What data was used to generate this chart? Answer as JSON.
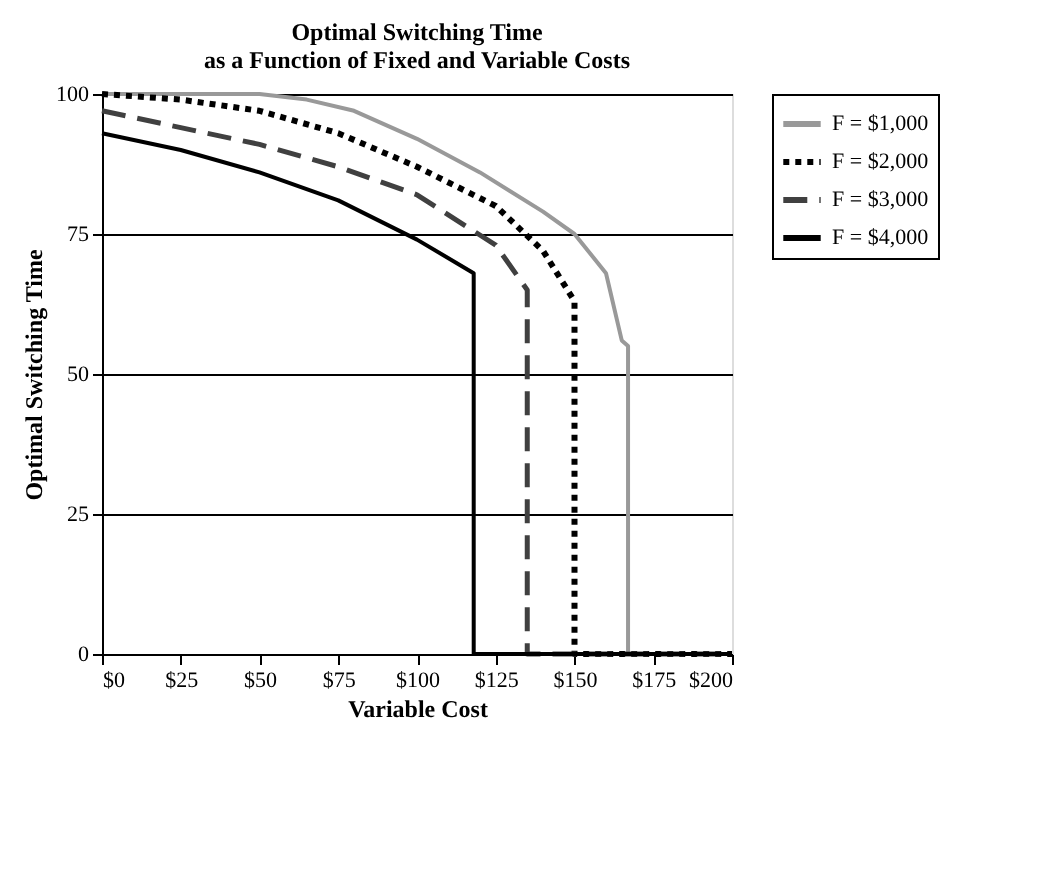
{
  "chart_data": {
    "type": "line",
    "title": "Optimal Switching Time\nas a Function of Fixed and Variable Costs",
    "xlabel": "Variable Cost",
    "ylabel": "Optimal Switching Time",
    "xlim": [
      0,
      200
    ],
    "xticks": [
      {
        "value": 0,
        "label": "$0"
      },
      {
        "value": 25,
        "label": "$25"
      },
      {
        "value": 50,
        "label": "$50"
      },
      {
        "value": 75,
        "label": "$75"
      },
      {
        "value": 100,
        "label": "$100"
      },
      {
        "value": 125,
        "label": "$125"
      },
      {
        "value": 150,
        "label": "$150"
      },
      {
        "value": 175,
        "label": "$175"
      },
      {
        "value": 200,
        "label": "$200"
      }
    ],
    "ylim": [
      0,
      100
    ],
    "yticks": [
      0,
      25,
      50,
      75,
      100
    ],
    "grid": "y",
    "legend": "right",
    "marker": "none",
    "series": [
      {
        "name": "F = $1,000",
        "color": "#999999",
        "line_style": "solid",
        "x": [
          0,
          25,
          50,
          65,
          80,
          100,
          120,
          140,
          150,
          160,
          165,
          167,
          167,
          200
        ],
        "values": [
          100,
          100,
          100,
          99,
          97,
          92,
          86,
          79,
          75,
          68,
          56,
          55,
          0,
          0
        ]
      },
      {
        "name": "F = $2,000",
        "color": "#000000",
        "line_style": "dotted",
        "x": [
          0,
          25,
          50,
          75,
          100,
          125,
          140,
          150,
          150,
          200
        ],
        "values": [
          100,
          99,
          97,
          93,
          87,
          80,
          72,
          63,
          0,
          0
        ]
      },
      {
        "name": "F = $3,000",
        "color": "#404040",
        "line_style": "dashed",
        "x": [
          0,
          25,
          50,
          75,
          100,
          125,
          135,
          135,
          200
        ],
        "values": [
          97,
          94,
          91,
          87,
          82,
          73,
          65,
          0,
          0
        ]
      },
      {
        "name": "F = $4,000",
        "color": "#000000",
        "line_style": "solid",
        "x": [
          0,
          25,
          50,
          75,
          100,
          118,
          118,
          200
        ],
        "values": [
          93,
          90,
          86,
          81,
          74,
          68,
          0,
          0
        ]
      }
    ]
  }
}
